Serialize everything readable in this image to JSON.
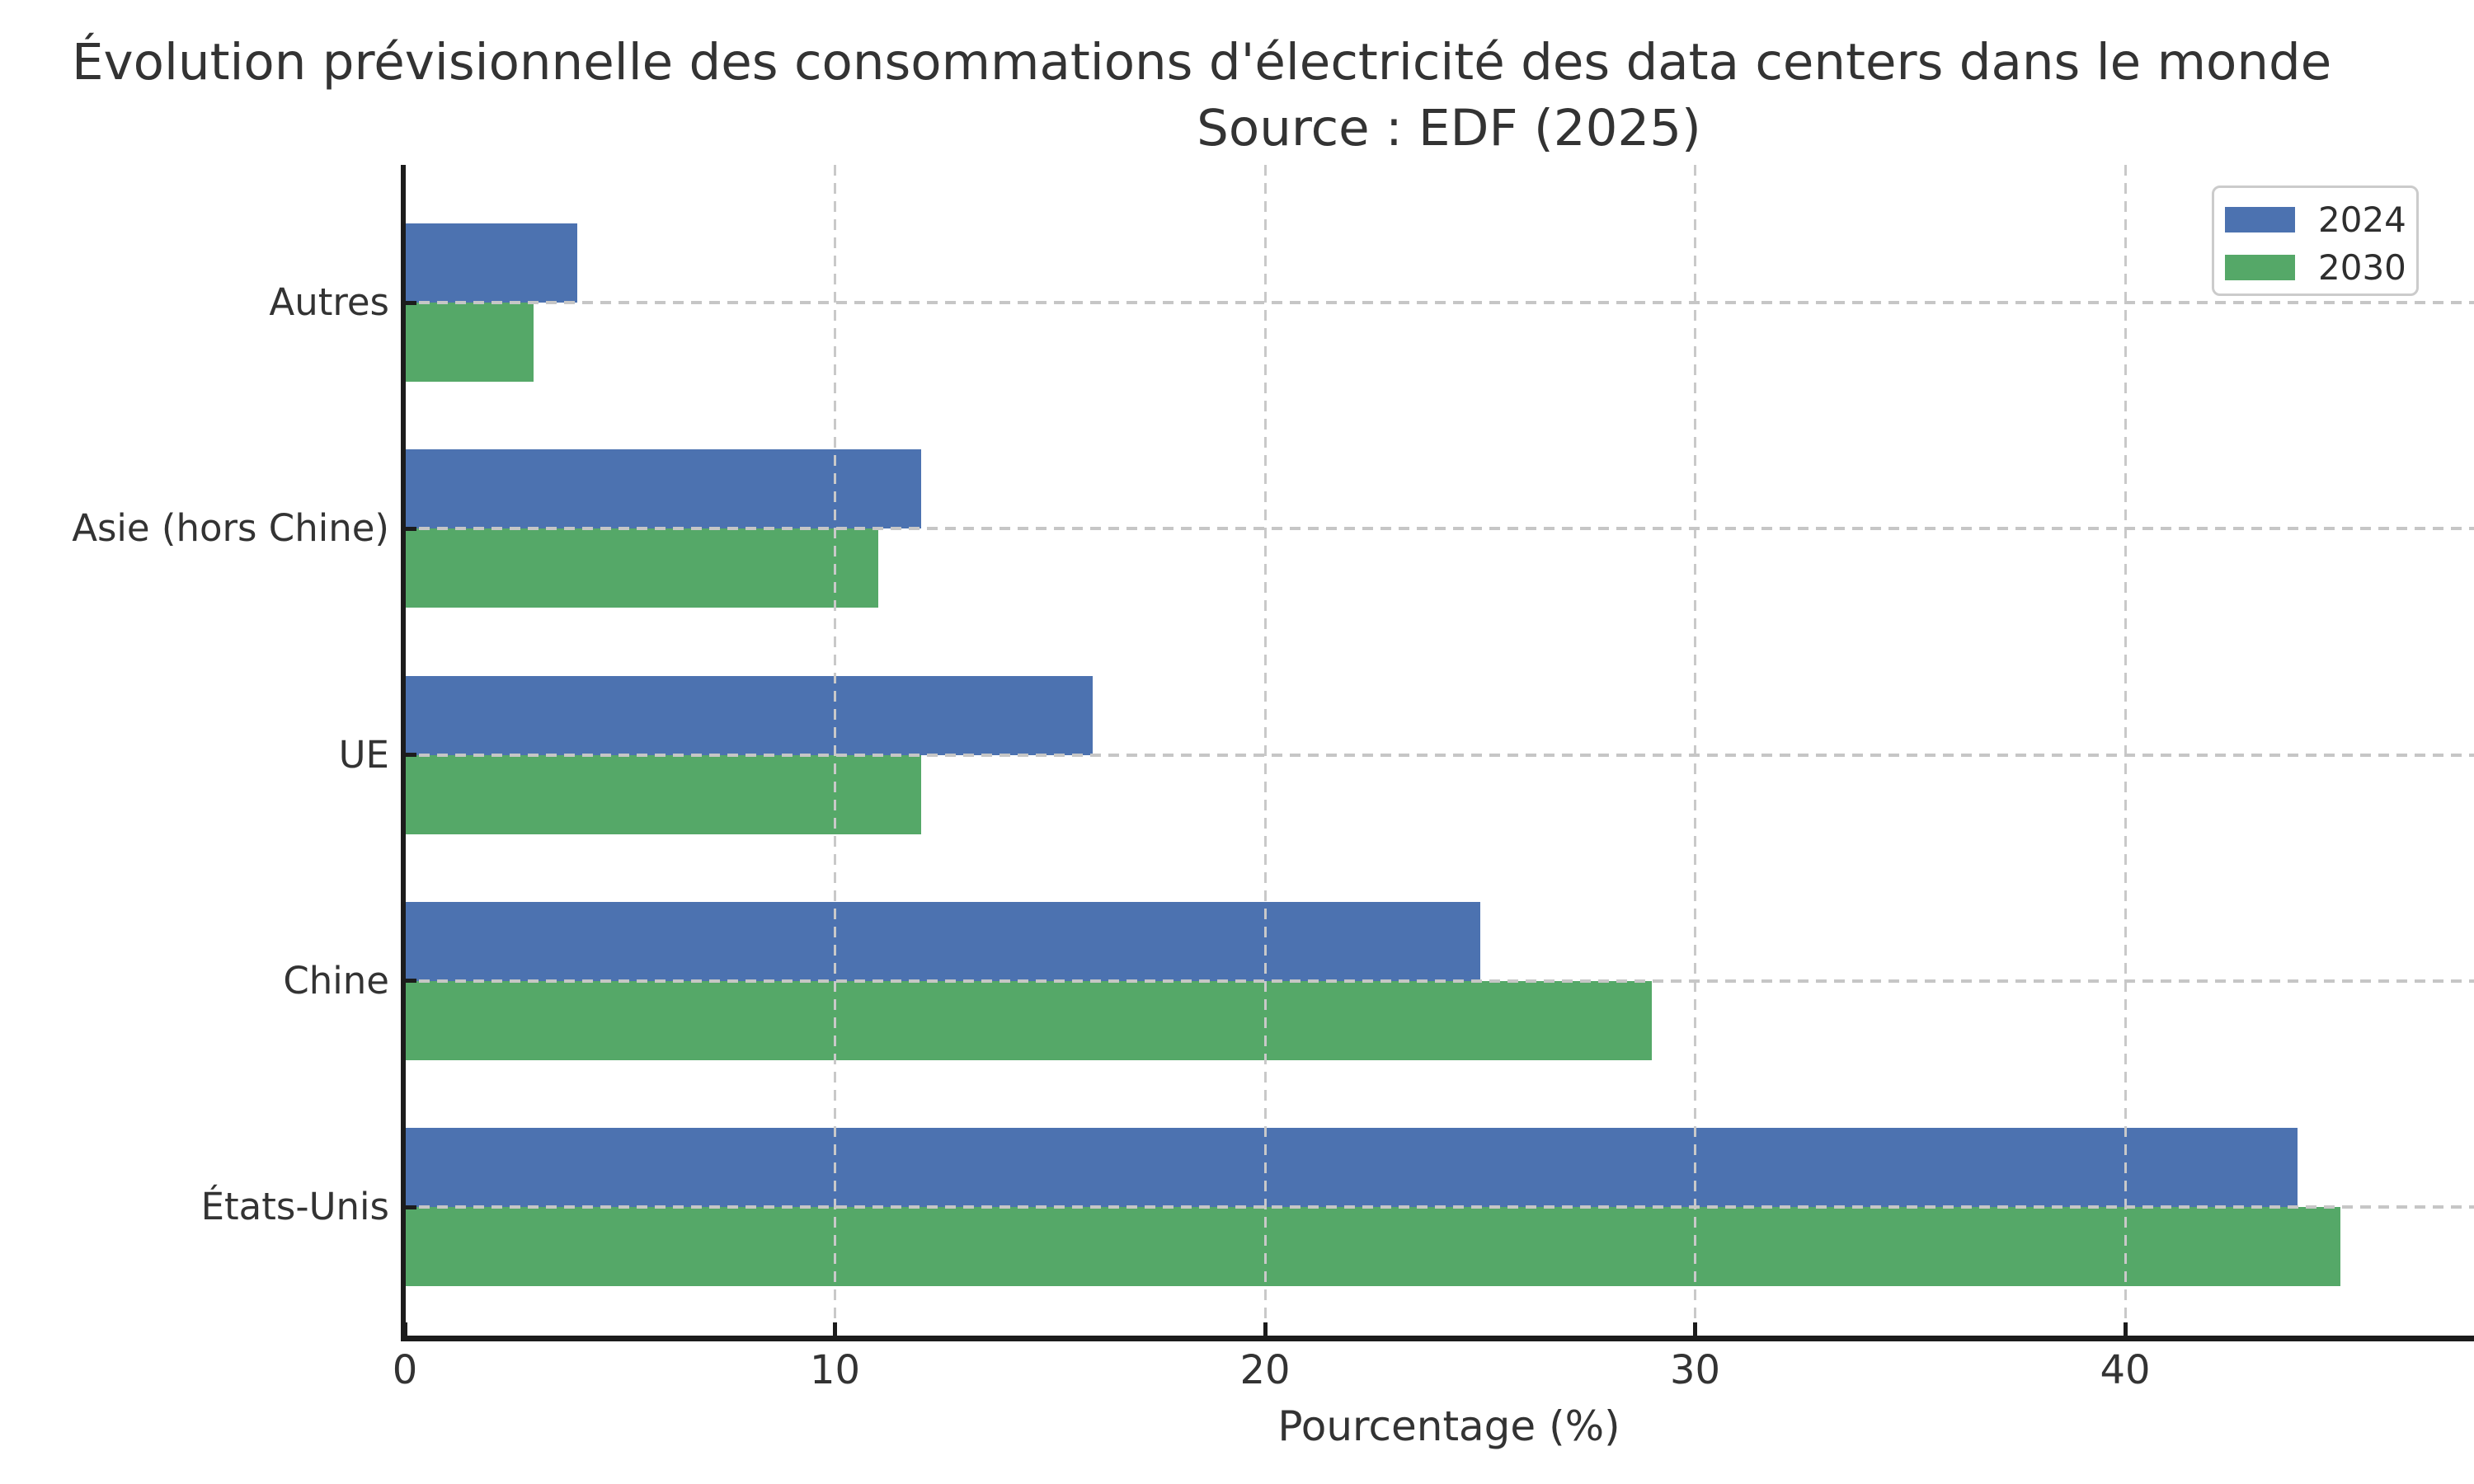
{
  "chart_data": {
    "type": "bar",
    "orientation": "horizontal",
    "title": "Évolution prévisionnelle des consommations d'électricité des data centers dans le monde",
    "subtitle": "Source : EDF (2025)",
    "xlabel": "Pourcentage (%)",
    "categories": [
      "Autres",
      "Asie (hors Chine)",
      "UE",
      "Chine",
      "États-Unis"
    ],
    "series": [
      {
        "name": "2024",
        "color": "#4C72B0",
        "values": [
          4,
          12,
          16,
          25,
          44
        ]
      },
      {
        "name": "2030",
        "color": "#55A868",
        "values": [
          3,
          11,
          12,
          29,
          45
        ]
      }
    ],
    "xticks": [
      0,
      10,
      20,
      30,
      40
    ],
    "xlim": [
      0,
      48.1
    ],
    "grid": true,
    "grid_style": "dashed",
    "legend": {
      "position": "upper right",
      "entries": [
        "2024",
        "2030"
      ]
    },
    "style_colors": {
      "grid": "#c8c8c8",
      "spine": "#1c1c1c",
      "text": "#333333"
    }
  }
}
